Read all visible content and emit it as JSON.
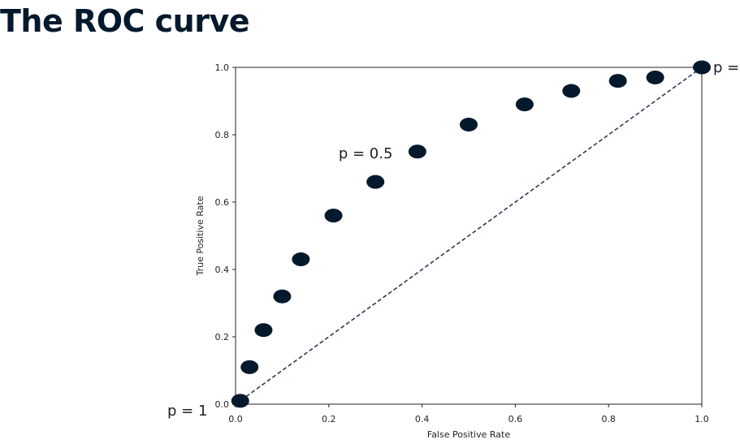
{
  "slide": {
    "title": "The ROC curve"
  },
  "chart_data": {
    "type": "scatter",
    "xlabel": "False Positive Rate",
    "ylabel": "True Positive Rate",
    "xlim": [
      0.0,
      1.0
    ],
    "ylim": [
      0.0,
      1.0
    ],
    "xticks": [
      "0.0",
      "0.2",
      "0.4",
      "0.6",
      "0.8",
      "1.0"
    ],
    "yticks": [
      "0.0",
      "0.2",
      "0.4",
      "0.6",
      "0.8",
      "1.0"
    ],
    "grid": false,
    "points": [
      {
        "x": 0.01,
        "y": 0.01
      },
      {
        "x": 0.03,
        "y": 0.11
      },
      {
        "x": 0.06,
        "y": 0.22
      },
      {
        "x": 0.1,
        "y": 0.32
      },
      {
        "x": 0.14,
        "y": 0.43
      },
      {
        "x": 0.21,
        "y": 0.56
      },
      {
        "x": 0.3,
        "y": 0.66
      },
      {
        "x": 0.39,
        "y": 0.75
      },
      {
        "x": 0.5,
        "y": 0.83
      },
      {
        "x": 0.62,
        "y": 0.89
      },
      {
        "x": 0.72,
        "y": 0.93
      },
      {
        "x": 0.82,
        "y": 0.96
      },
      {
        "x": 0.9,
        "y": 0.97
      },
      {
        "x": 1.0,
        "y": 1.0
      }
    ],
    "reference_line": {
      "style": "dashed",
      "from": [
        0.0,
        0.0
      ],
      "to": [
        1.0,
        1.0
      ],
      "color": "#2b3b52"
    },
    "marker_color": "#05192d",
    "annotations": [
      {
        "text": "p = 1",
        "x": 0.0,
        "y": 0.0
      },
      {
        "text": "p = 0.5",
        "x": 0.39,
        "y": 0.75
      },
      {
        "text": "p =",
        "x": 1.0,
        "y": 1.0
      }
    ]
  }
}
